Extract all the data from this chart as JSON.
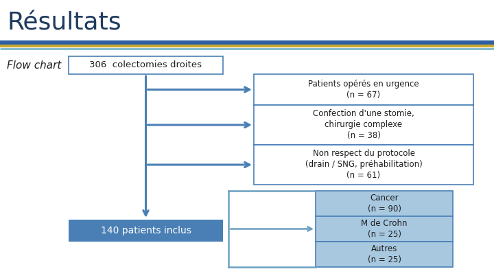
{
  "title": "Résultats",
  "subtitle": "Flow chart",
  "bg_color": "#ffffff",
  "title_color": "#1e3a5f",
  "title_fontsize": 26,
  "subtitle_fontsize": 11,
  "header_line1_color": "#2e5fa3",
  "header_line2_color": "#c8a832",
  "header_line3_color": "#7ab8d0",
  "box_color_main": "#4a7fb5",
  "box_color_light": "#6aa0c0",
  "box_border_color": "#4a7fb5",
  "box_sub_fill": "#a8c8e0",
  "arrow_color": "#4a7fb5",
  "text_color_dark": "#1e1e1e",
  "text_color_white": "#ffffff",
  "box_306_text": "306  colectomies droites",
  "box_67_text": "Patients opérés en urgence\n(n = 67)",
  "box_38_text": "Confection d'une stomie,\nchirurgie complexe\n(n = 38)",
  "box_61_text": "Non respect du protocole\n(drain / SNG, préhabilitation)\n(n = 61)",
  "box_140_text": "140 patients inclus",
  "box_cancer_text": "Cancer\n(n = 90)",
  "box_crohn_text": "M de Crohn\n(n = 25)",
  "box_autres_text": "Autres\n(n = 25)",
  "figsize": [
    7.2,
    4.05
  ],
  "dpi": 100
}
